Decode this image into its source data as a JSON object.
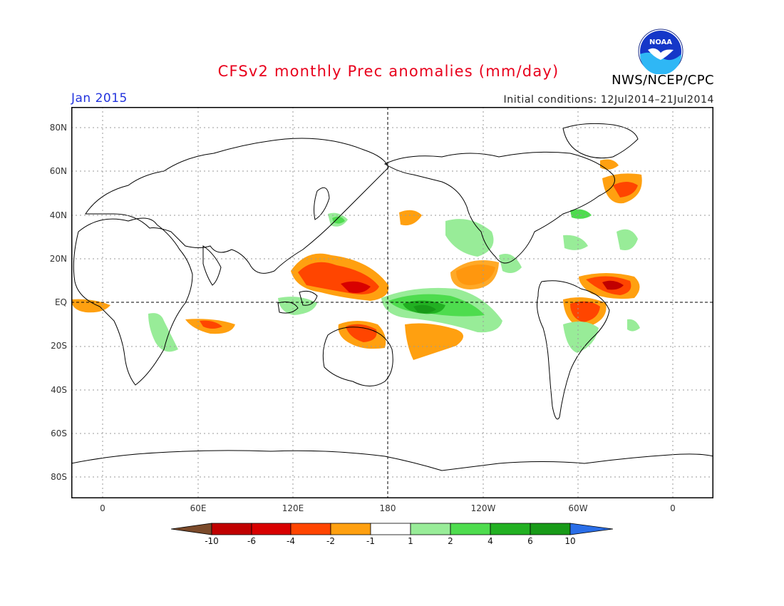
{
  "header": {
    "title": "CFSv2 monthly Prec anomalies (mm/day)",
    "month": "Jan 2015",
    "initial_conditions": "Initial conditions: 12Jul2014–21Jul2014",
    "agency": "NWS/NCEP/CPC",
    "logo_text": "NOAA"
  },
  "axes": {
    "lat_labels": [
      "80N",
      "60N",
      "40N",
      "20N",
      "EQ",
      "20S",
      "40S",
      "60S",
      "80S"
    ],
    "lon_labels": [
      "0",
      "60E",
      "120E",
      "180",
      "120W",
      "60W",
      "0"
    ]
  },
  "colorbar": {
    "labels": [
      "-10",
      "-6",
      "-4",
      "-2",
      "-1",
      "1",
      "2",
      "4",
      "6",
      "10"
    ],
    "colors": {
      "lt_-10": "#7b4a2a",
      "-10_-6": "#c00000",
      "-6_-4": "#d80000",
      "-4_-2": "#ff4500",
      "-2_-1": "#ffa010",
      "-1_1": "#ffffff",
      "1_2": "#98ec98",
      "2_4": "#4edc4e",
      "4_6": "#22b022",
      "6_10": "#189a18",
      "gt_10": "#2a6ee8"
    }
  }
}
